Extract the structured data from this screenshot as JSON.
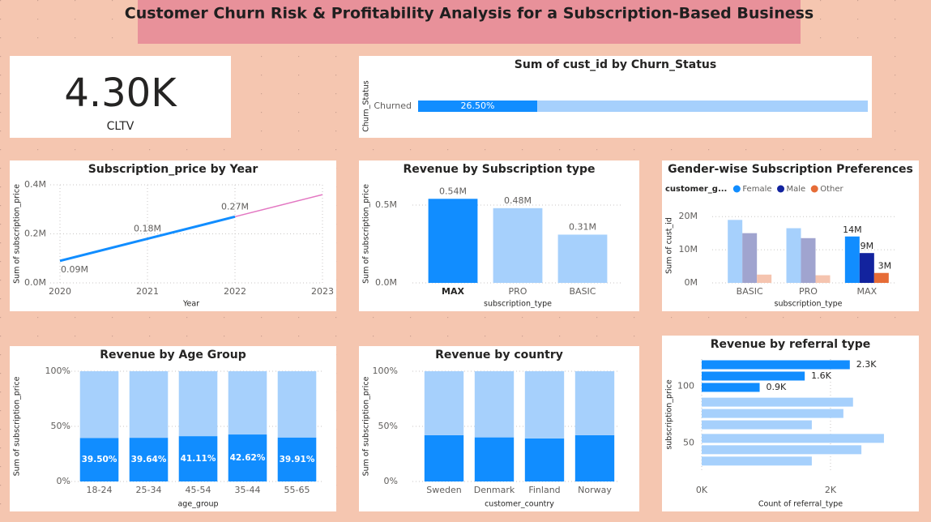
{
  "title": "Customer Churn Risk & Profitability Analysis for a Subscription-Based Business",
  "chart_data": [
    {
      "type": "card",
      "categories": [
        "CLTV"
      ],
      "values": [
        4300
      ],
      "value_labels": [
        "4.30K"
      ]
    },
    {
      "type": "stacked_hbar",
      "title": "Sum of cust_id by Churn_Status",
      "y_label": "Churn_Status",
      "categories": [
        "Churned"
      ],
      "xlim": [
        0,
        100
      ],
      "series": [
        {
          "color": "#118dff",
          "values": [
            26.5
          ],
          "value_labels": [
            "26.50%"
          ]
        },
        {
          "color": "#a6d0fc",
          "values": [
            73.5
          ]
        }
      ]
    },
    {
      "type": "line",
      "title": "Subscription_price by Year",
      "x_label": "Year",
      "y_label": "Sum of subscription_price",
      "x": [
        2020,
        2021,
        2022,
        2023
      ],
      "xlim": [
        2020,
        2023
      ],
      "xticks": [
        2020,
        2021,
        2022,
        2023
      ],
      "ylim": [
        0,
        0.4
      ],
      "yticks": [
        {
          "value": 0,
          "label": "0.0M"
        },
        {
          "value": 0.2,
          "label": "0.2M"
        },
        {
          "value": 0.4,
          "label": "0.4M"
        }
      ],
      "grid": true,
      "series": [
        {
          "color": "#118dff",
          "values": [
            0.09,
            0.18,
            0.27,
            0.36
          ],
          "value_labels": [
            "0.09M",
            "0.18M",
            "0.27M",
            null
          ]
        }
      ],
      "forecast": {
        "x": 2022,
        "color": "#e377c2"
      }
    },
    {
      "type": "bar",
      "title": "Revenue by Subscription type",
      "x_label": "subscription_type",
      "y_label": "Sum of subscription_price",
      "categories": [
        "MAX",
        "PRO",
        "BASIC"
      ],
      "highlight": "MAX",
      "values": [
        0.54,
        0.48,
        0.31
      ],
      "value_labels": [
        "0.54M",
        "0.48M",
        "0.31M"
      ],
      "colors": [
        "#118dff",
        "#a6d0fc",
        "#a6d0fc"
      ],
      "ylim": [
        0,
        0.63
      ],
      "yticks": [
        {
          "value": 0,
          "label": "0.0M"
        },
        {
          "value": 0.5,
          "label": "0.5M"
        }
      ],
      "grid": true
    },
    {
      "type": "grouped_bar",
      "title": "Gender-wise Subscription Preferences",
      "legend_title": "customer_g...",
      "x_label": "subscription_type",
      "y_label": "Sum of cust_id",
      "categories": [
        "BASIC",
        "PRO",
        "MAX"
      ],
      "highlight": "MAX",
      "ylim": [
        0,
        22.5
      ],
      "yticks": [
        {
          "value": 0,
          "label": "0M"
        },
        {
          "value": 10,
          "label": "10M"
        },
        {
          "value": 20,
          "label": "20M"
        }
      ],
      "grid": true,
      "series": [
        {
          "name": "Female",
          "color": "#118dff",
          "faded_color": "#a6d0fc",
          "values": [
            19,
            16.5,
            14
          ],
          "value_labels": [
            null,
            null,
            "14M"
          ]
        },
        {
          "name": "Male",
          "color": "#12239e",
          "faded_color": "#a0a4cf",
          "values": [
            15,
            13.5,
            9
          ],
          "value_labels": [
            null,
            null,
            "9M"
          ]
        },
        {
          "name": "Other",
          "color": "#e66c37",
          "faded_color": "#f5c4af",
          "values": [
            2.5,
            2.3,
            3
          ],
          "value_labels": [
            null,
            null,
            "3M"
          ]
        }
      ]
    },
    {
      "type": "stacked_percent",
      "title": "Revenue by Age Group",
      "x_label": "age_group",
      "y_label": "Sum of subscription_price",
      "categories": [
        "18-24",
        "25-34",
        "45-54",
        "35-44",
        "55-65"
      ],
      "ylim": [
        0,
        100
      ],
      "yticks": [
        {
          "value": 0,
          "label": "0%"
        },
        {
          "value": 50,
          "label": "50%"
        },
        {
          "value": 100,
          "label": "100%"
        }
      ],
      "grid": true,
      "series": [
        {
          "color": "#118dff",
          "values": [
            39.5,
            39.64,
            41.11,
            42.62,
            39.91
          ],
          "value_labels": [
            "39.50%",
            "39.64%",
            "41.11%",
            "42.62%",
            "39.91%"
          ]
        },
        {
          "color": "#a6d0fc",
          "values": [
            60.5,
            60.36,
            58.89,
            57.38,
            60.09
          ]
        }
      ]
    },
    {
      "type": "stacked_percent",
      "title": "Revenue by country",
      "x_label": "customer_country",
      "y_label": "Sum of subscription_price",
      "categories": [
        "Sweden",
        "Denmark",
        "Finland",
        "Norway"
      ],
      "ylim": [
        0,
        100
      ],
      "yticks": [
        {
          "value": 0,
          "label": "0%"
        },
        {
          "value": 50,
          "label": "50%"
        },
        {
          "value": 100,
          "label": "100%"
        }
      ],
      "grid": true,
      "series": [
        {
          "color": "#118dff",
          "values": [
            42,
            40,
            39,
            42
          ]
        },
        {
          "color": "#a6d0fc",
          "values": [
            58,
            60,
            61,
            58
          ]
        }
      ]
    },
    {
      "type": "hbar",
      "title": "Revenue by referral type",
      "x_label": "Count of referral_type",
      "y_label": "subscription_price",
      "y": [
        119,
        109,
        99,
        86,
        76,
        66,
        54,
        44,
        34
      ],
      "ylim": [
        26,
        124
      ],
      "yticks": [
        50,
        100
      ],
      "values": [
        2.3,
        1.6,
        0.9,
        2.35,
        2.2,
        1.71,
        2.83,
        2.48,
        1.71
      ],
      "value_labels": [
        "2.3K",
        "1.6K",
        "0.9K",
        null,
        null,
        null,
        null,
        null,
        null
      ],
      "colors": [
        "#118dff",
        "#118dff",
        "#118dff",
        "#a6d0fc",
        "#a6d0fc",
        "#a6d0fc",
        "#a6d0fc",
        "#a6d0fc",
        "#a6d0fc"
      ],
      "xlim": [
        0,
        3.07
      ],
      "xticks": [
        {
          "value": 0,
          "label": "0K"
        },
        {
          "value": 2,
          "label": "2K"
        }
      ],
      "grid": true
    }
  ]
}
